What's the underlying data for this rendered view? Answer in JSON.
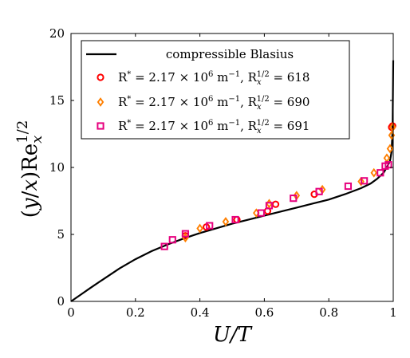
{
  "chart_data": {
    "type": "scatter",
    "xlabel": "U/T",
    "ylabel": "(y/x)Re_x^{1/2}",
    "xlim": [
      0,
      1
    ],
    "ylim": [
      0,
      20
    ],
    "xticks": [
      0,
      0.2,
      0.4,
      0.6,
      0.8,
      1
    ],
    "yticks": [
      0,
      5,
      10,
      15,
      20
    ],
    "xtick_labels": [
      "0",
      "0.2",
      "0.4",
      "0.6",
      "0.8",
      "1"
    ],
    "ytick_labels": [
      "0",
      "5",
      "10",
      "15",
      "20"
    ],
    "grid": false,
    "legend_position": "top",
    "series": [
      {
        "name": "compressible Blasius",
        "marker": "line",
        "color": "#000000",
        "x": [
          0,
          0.03,
          0.06,
          0.1,
          0.15,
          0.2,
          0.25,
          0.3,
          0.35,
          0.4,
          0.45,
          0.5,
          0.55,
          0.6,
          0.65,
          0.7,
          0.75,
          0.8,
          0.85,
          0.9,
          0.93,
          0.95,
          0.97,
          0.98,
          0.99,
          0.995,
          0.998,
          1.0
        ],
        "y": [
          0,
          0.5,
          1.0,
          1.65,
          2.45,
          3.15,
          3.75,
          4.25,
          4.7,
          5.1,
          5.45,
          5.8,
          6.1,
          6.4,
          6.7,
          7.0,
          7.3,
          7.6,
          8.0,
          8.45,
          8.8,
          9.15,
          9.6,
          10.0,
          10.5,
          11.2,
          13.0,
          18.0
        ]
      },
      {
        "name": "R* = 2.17 × 10^6 m^-1, Rx^1/2 = 618",
        "marker": "circle",
        "color": "#ff0000",
        "x": [
          0.355,
          0.42,
          0.515,
          0.61,
          0.635,
          0.755,
          0.995,
          0.998
        ],
        "y": [
          4.9,
          5.55,
          6.1,
          6.75,
          7.25,
          8.0,
          13.0,
          13.1
        ]
      },
      {
        "name": "R* = 2.17 × 10^6 m^-1, Rx^1/2 = 690",
        "marker": "diamond",
        "color": "#ff7f00",
        "x": [
          0.355,
          0.4,
          0.48,
          0.575,
          0.615,
          0.7,
          0.78,
          0.9,
          0.94,
          0.98,
          0.99,
          0.995,
          0.998
        ],
        "y": [
          4.75,
          5.45,
          5.95,
          6.6,
          7.3,
          7.9,
          8.35,
          8.95,
          9.6,
          10.7,
          11.4,
          12.4,
          13.0
        ]
      },
      {
        "name": "R* = 2.17 × 10^6 m^-1, Rx^1/2 = 691",
        "marker": "square",
        "color": "#e6007e",
        "x": [
          0.29,
          0.315,
          0.355,
          0.43,
          0.51,
          0.59,
          0.615,
          0.69,
          0.77,
          0.86,
          0.91,
          0.96,
          0.975,
          0.985
        ],
        "y": [
          4.1,
          4.6,
          5.05,
          5.65,
          6.1,
          6.6,
          7.15,
          7.7,
          8.2,
          8.6,
          9.0,
          9.6,
          10.1,
          10.2
        ]
      }
    ]
  }
}
